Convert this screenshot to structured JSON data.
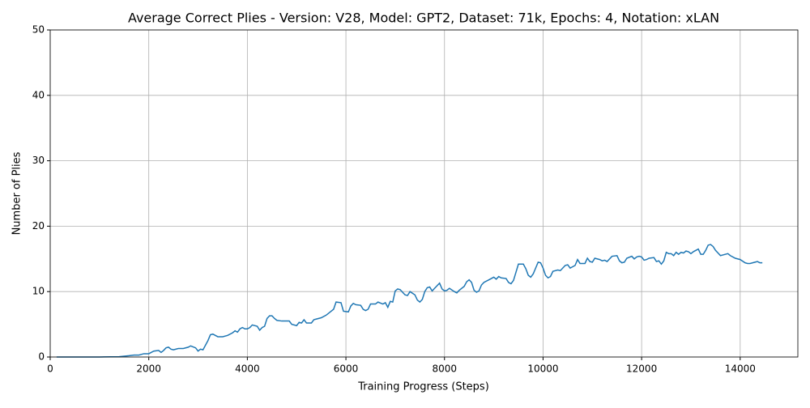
{
  "chart_data": {
    "type": "line",
    "title": "Average Correct Plies - Version: V28, Model: GPT2, Dataset: 71k, Epochs: 4, Notation: xLAN",
    "x_label": "Training Progress (Steps)",
    "y_label": "Number of Plies",
    "xlim": [
      0,
      15170
    ],
    "ylim": [
      0,
      50
    ],
    "xticks": [
      0,
      2000,
      4000,
      6000,
      8000,
      10000,
      12000,
      14000
    ],
    "yticks": [
      0,
      10,
      20,
      30,
      40,
      50
    ],
    "grid": true,
    "x": [
      130,
      500,
      1000,
      1400,
      1600,
      1700,
      1800,
      1900,
      2000,
      2100,
      2200,
      2250,
      2300,
      2350,
      2400,
      2450,
      2500,
      2600,
      2700,
      2800,
      2850,
      2950,
      3000,
      3050,
      3100,
      3200,
      3250,
      3300,
      3400,
      3500,
      3600,
      3700,
      3750,
      3800,
      3850,
      3900,
      3950,
      4000,
      4050,
      4100,
      4200,
      4250,
      4300,
      4350,
      4400,
      4450,
      4500,
      4550,
      4600,
      4700,
      4800,
      4850,
      4900,
      5000,
      5050,
      5100,
      5150,
      5200,
      5300,
      5350,
      5400,
      5500,
      5600,
      5700,
      5750,
      5800,
      5900,
      5950,
      6050,
      6100,
      6150,
      6200,
      6300,
      6350,
      6400,
      6450,
      6500,
      6600,
      6650,
      6750,
      6800,
      6850,
      6900,
      6950,
      7000,
      7050,
      7100,
      7150,
      7200,
      7250,
      7300,
      7400,
      7450,
      7500,
      7550,
      7600,
      7650,
      7700,
      7750,
      7800,
      7900,
      7950,
      8000,
      8050,
      8100,
      8200,
      8250,
      8300,
      8400,
      8450,
      8500,
      8550,
      8600,
      8650,
      8700,
      8750,
      8800,
      8900,
      9000,
      9050,
      9100,
      9150,
      9250,
      9300,
      9350,
      9400,
      9500,
      9600,
      9650,
      9700,
      9750,
      9800,
      9900,
      9950,
      10000,
      10050,
      10100,
      10150,
      10200,
      10300,
      10350,
      10450,
      10500,
      10550,
      10650,
      10700,
      10750,
      10850,
      10900,
      10950,
      11000,
      11050,
      11150,
      11200,
      11250,
      11300,
      11400,
      11500,
      11550,
      11600,
      11650,
      11700,
      11800,
      11850,
      11900,
      11950,
      12000,
      12050,
      12100,
      12150,
      12250,
      12300,
      12350,
      12400,
      12450,
      12500,
      12550,
      12600,
      12650,
      12700,
      12750,
      12800,
      12850,
      12900,
      12950,
      13000,
      13050,
      13150,
      13200,
      13250,
      13300,
      13350,
      13400,
      13450,
      13500,
      13550,
      13600,
      13650,
      13750,
      13800,
      13900,
      14000,
      14100,
      14150,
      14200,
      14300,
      14350,
      14400,
      14450
    ],
    "series": [
      {
        "color": "#1f77b4",
        "values": [
          0,
          0,
          0,
          0.05,
          0.2,
          0.3,
          0.3,
          0.5,
          0.5,
          0.9,
          1.0,
          0.7,
          1.0,
          1.4,
          1.5,
          1.2,
          1.1,
          1.3,
          1.3,
          1.5,
          1.7,
          1.4,
          0.9,
          1.2,
          1.1,
          2.5,
          3.4,
          3.5,
          3.1,
          3.1,
          3.3,
          3.7,
          4.0,
          3.8,
          4.3,
          4.5,
          4.3,
          4.3,
          4.5,
          4.9,
          4.7,
          4.1,
          4.5,
          4.7,
          5.9,
          6.3,
          6.3,
          5.9,
          5.6,
          5.5,
          5.5,
          5.5,
          5.0,
          4.8,
          5.3,
          5.2,
          5.7,
          5.2,
          5.2,
          5.7,
          5.8,
          6.0,
          6.4,
          7.0,
          7.3,
          8.4,
          8.3,
          7.0,
          6.9,
          7.8,
          8.2,
          8.0,
          7.9,
          7.3,
          7.1,
          7.3,
          8.1,
          8.1,
          8.4,
          8.1,
          8.3,
          7.6,
          8.5,
          8.4,
          10.1,
          10.4,
          10.3,
          9.9,
          9.5,
          9.4,
          10.0,
          9.5,
          8.7,
          8.4,
          8.8,
          10.0,
          10.6,
          10.7,
          10.1,
          10.5,
          11.3,
          10.4,
          10.1,
          10.2,
          10.5,
          10.0,
          9.8,
          10.2,
          10.8,
          11.5,
          11.8,
          11.4,
          10.2,
          9.9,
          10.1,
          11.0,
          11.4,
          11.8,
          12.2,
          11.9,
          12.3,
          12.1,
          12.0,
          11.4,
          11.2,
          11.7,
          14.2,
          14.2,
          13.5,
          12.5,
          12.2,
          12.7,
          14.5,
          14.4,
          13.6,
          12.5,
          12.1,
          12.3,
          13.1,
          13.3,
          13.2,
          14.0,
          14.1,
          13.6,
          14.0,
          14.9,
          14.3,
          14.3,
          15.1,
          14.6,
          14.5,
          15.1,
          14.9,
          14.7,
          14.8,
          14.6,
          15.4,
          15.5,
          14.7,
          14.4,
          14.5,
          15.1,
          15.4,
          15.0,
          15.3,
          15.4,
          15.3,
          14.8,
          14.9,
          15.1,
          15.2,
          14.6,
          14.7,
          14.2,
          14.7,
          16.0,
          15.8,
          15.8,
          15.5,
          16.0,
          15.7,
          16.0,
          15.9,
          16.2,
          16.1,
          15.8,
          16.1,
          16.5,
          15.7,
          15.7,
          16.3,
          17.1,
          17.2,
          16.9,
          16.3,
          15.9,
          15.5,
          15.6,
          15.8,
          15.5,
          15.1,
          14.9,
          14.4,
          14.3,
          14.3,
          14.5,
          14.6,
          14.4,
          14.4
        ]
      }
    ]
  }
}
